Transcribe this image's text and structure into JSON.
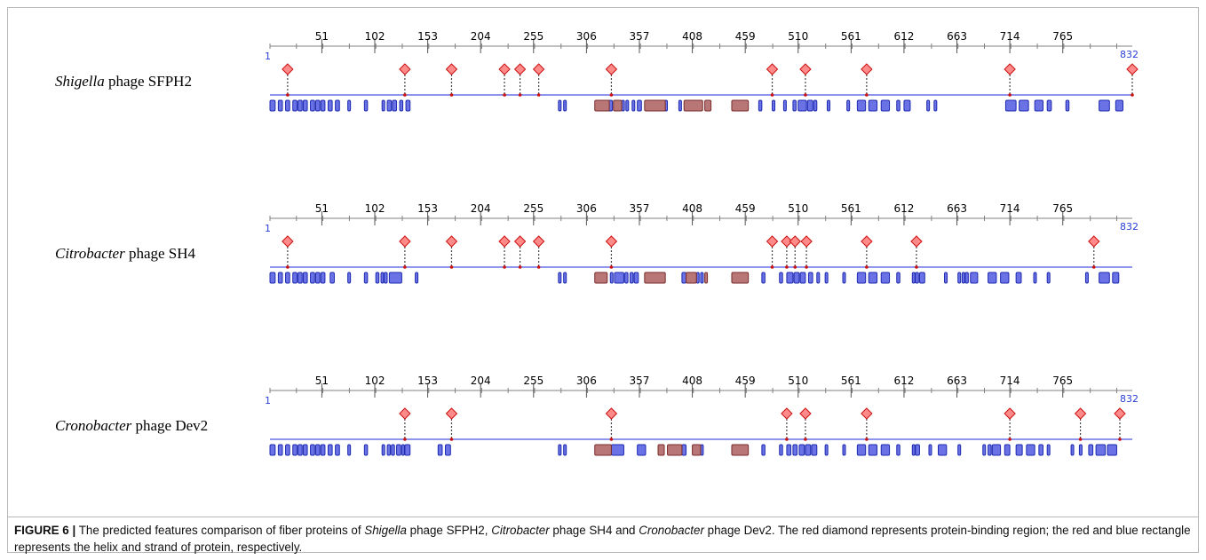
{
  "panels": [
    {
      "genus": "Shigella",
      "rest": " phage SFPH2",
      "start": "1",
      "end": "832",
      "diamonds": [
        18,
        131,
        176,
        227,
        242,
        260,
        330,
        485,
        517,
        576,
        714,
        832
      ],
      "strands": [
        [
          1,
          6
        ],
        [
          9,
          13
        ],
        [
          16,
          20
        ],
        [
          23,
          27
        ],
        [
          28,
          32
        ],
        [
          33,
          37
        ],
        [
          40,
          44
        ],
        [
          45,
          49
        ],
        [
          50,
          54
        ],
        [
          57,
          61
        ],
        [
          64,
          68
        ],
        [
          76,
          78
        ],
        [
          92,
          95
        ],
        [
          109,
          111
        ],
        [
          114,
          118
        ],
        [
          119,
          123
        ],
        [
          126,
          129
        ],
        [
          132,
          136
        ],
        [
          279,
          281
        ],
        [
          284,
          286
        ],
        [
          327,
          331
        ],
        [
          340,
          342
        ],
        [
          344,
          346
        ],
        [
          350,
          352
        ],
        [
          355,
          359
        ],
        [
          381,
          384
        ],
        [
          395,
          397
        ],
        [
          410,
          412
        ],
        [
          472,
          475
        ],
        [
          485,
          487
        ],
        [
          496,
          498
        ],
        [
          505,
          508
        ],
        [
          510,
          518
        ],
        [
          519,
          524
        ],
        [
          525,
          528
        ],
        [
          538,
          540
        ],
        [
          557,
          559
        ],
        [
          567,
          575
        ],
        [
          578,
          586
        ],
        [
          590,
          598
        ],
        [
          605,
          608
        ],
        [
          612,
          618
        ],
        [
          634,
          636
        ],
        [
          641,
          643
        ],
        [
          710,
          720
        ],
        [
          723,
          732
        ],
        [
          738,
          746
        ],
        [
          750,
          754
        ],
        [
          768,
          771
        ],
        [
          800,
          810
        ],
        [
          816,
          823
        ]
      ],
      "helices": [
        [
          314,
          328
        ],
        [
          332,
          340
        ],
        [
          362,
          382
        ],
        [
          400,
          418
        ],
        [
          420,
          426
        ],
        [
          446,
          462
        ]
      ]
    },
    {
      "genus": "Citrobacter",
      "rest": " phage SH4",
      "start": "1",
      "end": "832",
      "diamonds": [
        18,
        131,
        176,
        227,
        242,
        260,
        330,
        485,
        499,
        507,
        518,
        576,
        624,
        795
      ],
      "strands": [
        [
          1,
          6
        ],
        [
          9,
          13
        ],
        [
          16,
          20
        ],
        [
          23,
          27
        ],
        [
          28,
          32
        ],
        [
          33,
          37
        ],
        [
          40,
          44
        ],
        [
          45,
          49
        ],
        [
          50,
          54
        ],
        [
          59,
          63
        ],
        [
          76,
          78
        ],
        [
          92,
          95
        ],
        [
          103,
          106
        ],
        [
          108,
          110
        ],
        [
          111,
          114
        ],
        [
          116,
          128
        ],
        [
          141,
          143
        ],
        [
          279,
          281
        ],
        [
          284,
          286
        ],
        [
          329,
          331
        ],
        [
          333,
          342
        ],
        [
          343,
          346
        ],
        [
          348,
          351
        ],
        [
          352,
          356
        ],
        [
          398,
          402
        ],
        [
          412,
          414
        ],
        [
          416,
          418
        ],
        [
          475,
          478
        ],
        [
          492,
          495
        ],
        [
          499,
          505
        ],
        [
          506,
          511
        ],
        [
          512,
          517
        ],
        [
          520,
          524
        ],
        [
          528,
          530
        ],
        [
          536,
          538
        ],
        [
          553,
          555
        ],
        [
          567,
          575
        ],
        [
          578,
          586
        ],
        [
          590,
          598
        ],
        [
          605,
          608
        ],
        [
          620,
          622
        ],
        [
          623,
          626
        ],
        [
          627,
          632
        ],
        [
          651,
          653
        ],
        [
          664,
          666
        ],
        [
          668,
          670
        ],
        [
          671,
          674
        ],
        [
          676,
          683
        ],
        [
          693,
          701
        ],
        [
          705,
          713
        ],
        [
          720,
          725
        ],
        [
          737,
          739
        ],
        [
          750,
          752
        ],
        [
          787,
          789
        ],
        [
          800,
          810
        ],
        [
          813,
          819
        ]
      ],
      "helices": [
        [
          314,
          326
        ],
        [
          362,
          382
        ],
        [
          402,
          412
        ],
        [
          420,
          422
        ],
        [
          446,
          462
        ]
      ]
    },
    {
      "genus": "Cronobacter",
      "rest": " phage Dev2",
      "start": "1",
      "end": "832",
      "diamonds": [
        131,
        176,
        330,
        499,
        517,
        576,
        714,
        782,
        820
      ],
      "strands": [
        [
          1,
          6
        ],
        [
          9,
          13
        ],
        [
          16,
          20
        ],
        [
          23,
          27
        ],
        [
          28,
          32
        ],
        [
          33,
          37
        ],
        [
          40,
          44
        ],
        [
          45,
          49
        ],
        [
          50,
          54
        ],
        [
          57,
          61
        ],
        [
          64,
          68
        ],
        [
          76,
          78
        ],
        [
          92,
          95
        ],
        [
          109,
          111
        ],
        [
          114,
          117
        ],
        [
          118,
          121
        ],
        [
          123,
          127
        ],
        [
          128,
          130
        ],
        [
          131,
          136
        ],
        [
          163,
          167
        ],
        [
          170,
          175
        ],
        [
          279,
          281
        ],
        [
          284,
          286
        ],
        [
          330,
          342
        ],
        [
          355,
          363
        ],
        [
          398,
          402
        ],
        [
          416,
          418
        ],
        [
          475,
          478
        ],
        [
          492,
          495
        ],
        [
          499,
          503
        ],
        [
          505,
          509
        ],
        [
          511,
          516
        ],
        [
          517,
          522
        ],
        [
          523,
          528
        ],
        [
          536,
          538
        ],
        [
          553,
          555
        ],
        [
          567,
          575
        ],
        [
          578,
          586
        ],
        [
          590,
          598
        ],
        [
          605,
          608
        ],
        [
          620,
          622
        ],
        [
          623,
          627
        ],
        [
          636,
          638
        ],
        [
          645,
          653
        ],
        [
          664,
          666
        ],
        [
          688,
          690
        ],
        [
          693,
          696
        ],
        [
          697,
          705
        ],
        [
          709,
          714
        ],
        [
          720,
          726
        ],
        [
          730,
          738
        ],
        [
          742,
          746
        ],
        [
          750,
          752
        ],
        [
          773,
          775
        ],
        [
          781,
          783
        ],
        [
          790,
          794
        ],
        [
          797,
          806
        ],
        [
          808,
          817
        ]
      ],
      "helices": [
        [
          314,
          330
        ],
        [
          375,
          381
        ],
        [
          384,
          398
        ],
        [
          408,
          416
        ],
        [
          446,
          462
        ]
      ]
    }
  ],
  "ticks": [
    "51",
    "102",
    "153",
    "204",
    "255",
    "306",
    "357",
    "408",
    "459",
    "510",
    "561",
    "612",
    "663",
    "714",
    "765"
  ],
  "caption": {
    "label": "FIGURE 6 |",
    "p1": " The predicted features comparison of fiber proteins of ",
    "s1": "Shigella",
    "p2": " phage SFPH2, ",
    "s2": "Citrobacter",
    "p3": " phage SH4 and ",
    "s3": "Cronobacter",
    "p4": " phage Dev2. The red diamond represents protein-binding region; the red and blue rectangle represents the helix and strand of protein, respectively."
  },
  "colors": {
    "axis": "#808080",
    "feature_line": "#6a72e6",
    "strand_fill": "#6a72e6",
    "strand_stroke": "#1e2bb0",
    "helix_fill": "#b87676",
    "helix_stroke": "#7a2c2c",
    "diamond_fill": "#ff8a8a",
    "diamond_stroke": "#cc1111"
  }
}
